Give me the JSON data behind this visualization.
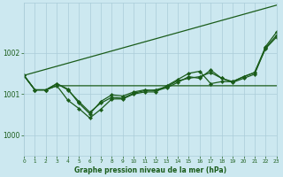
{
  "title": "Graphe pression niveau de la mer (hPa)",
  "bg_color": "#cce8f0",
  "grid_color": "#aaccd8",
  "line_color": "#1a5c1a",
  "xlim": [
    0,
    23
  ],
  "ylim": [
    999.5,
    1003.2
  ],
  "yticks": [
    1000,
    1001,
    1002
  ],
  "xticks": [
    0,
    1,
    2,
    3,
    4,
    5,
    6,
    7,
    8,
    9,
    10,
    11,
    12,
    13,
    14,
    15,
    16,
    17,
    18,
    19,
    20,
    21,
    22,
    23
  ],
  "series": [
    {
      "x": [
        0,
        23
      ],
      "y": [
        1001.45,
        1003.15
      ],
      "marker": null,
      "markersize": 0,
      "linewidth": 0.9
    },
    {
      "x": [
        0,
        1,
        2,
        3,
        23
      ],
      "y": [
        1001.45,
        1001.1,
        1001.1,
        1001.2,
        1001.2
      ],
      "marker": null,
      "markersize": 0,
      "linewidth": 0.9
    },
    {
      "x": [
        0,
        1,
        2,
        3,
        4,
        5,
        6,
        7,
        8,
        9,
        10,
        11,
        12,
        13,
        14,
        15,
        16,
        17,
        18,
        19,
        20,
        21,
        22,
        23
      ],
      "y": [
        1001.45,
        1001.1,
        1001.1,
        1001.2,
        1000.85,
        1000.65,
        1000.42,
        1000.63,
        1000.88,
        1000.88,
        1001.0,
        1001.05,
        1001.05,
        1001.2,
        1001.35,
        1001.5,
        1001.55,
        1001.25,
        1001.3,
        1001.3,
        1001.42,
        1001.52,
        1002.15,
        1002.5
      ],
      "marker": "D",
      "markersize": 2.2,
      "linewidth": 0.9
    },
    {
      "x": [
        0,
        1,
        2,
        3,
        4,
        5,
        6,
        7,
        8,
        9,
        10,
        11,
        12,
        13,
        14,
        15,
        16,
        17,
        18,
        19,
        20,
        21,
        22,
        23
      ],
      "y": [
        1001.45,
        1001.1,
        1001.1,
        1001.25,
        1001.1,
        1000.82,
        1000.56,
        1000.78,
        1000.92,
        1000.9,
        1001.02,
        1001.08,
        1001.1,
        1001.18,
        1001.32,
        1001.38,
        1001.42,
        1001.52,
        1001.38,
        1001.3,
        1001.42,
        1001.52,
        1002.1,
        1002.38
      ],
      "marker": "D",
      "markersize": 2.2,
      "linewidth": 0.9
    },
    {
      "x": [
        0,
        1,
        2,
        3,
        4,
        5,
        6,
        7,
        8,
        9,
        10,
        11,
        12,
        13,
        14,
        15,
        16,
        17,
        18,
        19,
        20,
        21,
        22,
        23
      ],
      "y": [
        1001.45,
        1001.1,
        1001.1,
        1001.25,
        1001.12,
        1000.78,
        1000.52,
        1000.82,
        1000.98,
        1000.95,
        1001.05,
        1001.1,
        1001.08,
        1001.15,
        1001.28,
        1001.42,
        1001.38,
        1001.58,
        1001.38,
        1001.28,
        1001.38,
        1001.48,
        1002.12,
        1002.42
      ],
      "marker": "D",
      "markersize": 2.2,
      "linewidth": 0.9
    }
  ]
}
